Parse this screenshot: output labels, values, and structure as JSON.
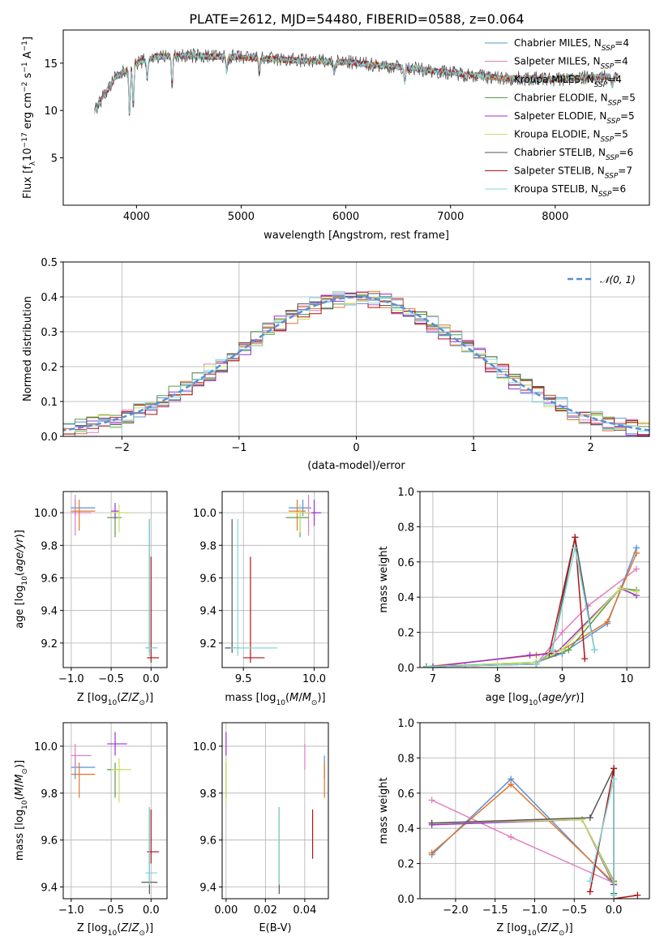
{
  "figure_title": "PLATE=2612, MJD=54480, FIBERID=0588, z=0.064",
  "series_colors": {
    "Chabrier MILES": "#5b8fd6",
    "Salpeter MILES": "#e07fc2",
    "Kroupa MILES": "#e0772a",
    "Chabrier ELODIE": "#5a9a4a",
    "Salpeter ELODIE": "#9b30d0",
    "Kroupa ELODIE": "#c8e060",
    "Chabrier STELIB": "#555555",
    "Salpeter STELIB": "#b01515",
    "Kroupa STELIB": "#80d8d8"
  },
  "chart_data": [
    {
      "type": "line",
      "panel": "spectrum",
      "xlabel": "wavelength [Angstrom, rest frame]",
      "ylabel": "Flux [f_λ10^-17 erg cm^-2 s^-1 A^-1]",
      "xlim": [
        3300,
        8900
      ],
      "ylim": [
        0,
        18.5
      ],
      "xticks": [
        4000,
        5000,
        6000,
        7000,
        8000
      ],
      "yticks": [
        5,
        10,
        15
      ],
      "grid": false,
      "legend_position": "right",
      "legend": [
        {
          "name": "Chabrier MILES",
          "nssp": "4"
        },
        {
          "name": "Salpeter MILES",
          "nssp": "4"
        },
        {
          "name": "Kroupa MILES",
          "nssp": "4"
        },
        {
          "name": "Chabrier ELODIE",
          "nssp": "5"
        },
        {
          "name": "Salpeter ELODIE",
          "nssp": "5"
        },
        {
          "name": "Kroupa ELODIE",
          "nssp": "5"
        },
        {
          "name": "Chabrier STELIB",
          "nssp": "6"
        },
        {
          "name": "Salpeter STELIB",
          "nssp": "7"
        },
        {
          "name": "Kroupa STELIB",
          "nssp": "6"
        }
      ],
      "continuum": {
        "x": [
          3600,
          3700,
          3800,
          3900,
          4000,
          4200,
          4500,
          5000,
          5500,
          6000,
          6500,
          7000,
          7500,
          8000,
          8500
        ],
        "y": [
          10.0,
          11.8,
          13.5,
          14.2,
          15.0,
          15.7,
          15.8,
          15.6,
          15.3,
          15.1,
          14.6,
          14.0,
          13.4,
          13.3,
          13.6
        ]
      }
    },
    {
      "type": "step",
      "panel": "residuals",
      "xlabel": "(data-model)/error",
      "ylabel": "Normed distribution",
      "xlim": [
        -2.5,
        2.5
      ],
      "ylim": [
        0,
        0.5
      ],
      "xticks": [
        -2,
        -1,
        0,
        1,
        2
      ],
      "yticks": [
        0.0,
        0.1,
        0.2,
        0.3,
        0.4,
        0.5
      ],
      "grid": true,
      "legend_position": "top-right",
      "reference_curve": {
        "name": "𝒩(0, 1)",
        "mean": 0,
        "sigma": 1
      },
      "bin_width": 0.1
    },
    {
      "type": "errorbar",
      "panel": "age-vs-Z",
      "xlabel": "Z [log10(Z/Z⊙)]",
      "ylabel": "age [log10(age/yr)]",
      "xlim": [
        -1.1,
        0.2
      ],
      "ylim": [
        9.05,
        10.13
      ],
      "xticks": [
        -1.0,
        -0.5,
        0.0
      ],
      "yticks": [
        9.2,
        9.4,
        9.6,
        9.8,
        10.0
      ],
      "points": [
        {
          "series": "Chabrier MILES",
          "x": -0.95,
          "xerr": [
            0.05,
            0.25
          ],
          "y": 10.03,
          "yerr": [
            0.05,
            0.05
          ]
        },
        {
          "series": "Salpeter MILES",
          "x": -0.95,
          "xerr": [
            0.05,
            0.2
          ],
          "y": 10.0,
          "yerr": [
            0.14,
            0.11
          ]
        },
        {
          "series": "Kroupa MILES",
          "x": -0.9,
          "xerr": [
            0.1,
            0.2
          ],
          "y": 10.01,
          "yerr": [
            0.12,
            0.07
          ]
        },
        {
          "series": "Chabrier ELODIE",
          "x": -0.45,
          "xerr": [
            0.1,
            0.08
          ],
          "y": 9.97,
          "yerr": [
            0.12,
            0.03
          ]
        },
        {
          "series": "Salpeter ELODIE",
          "x": -0.45,
          "xerr": [
            0.05,
            0.05
          ],
          "y": 10.01,
          "yerr": [
            0.05,
            0.05
          ]
        },
        {
          "series": "Kroupa ELODIE",
          "x": -0.4,
          "xerr": [
            0.1,
            0.15
          ],
          "y": 10.0,
          "yerr": [
            0.12,
            0.05
          ]
        },
        {
          "series": "Chabrier STELIB",
          "x": -0.02,
          "xerr": [
            0.05,
            0.1
          ],
          "y": 9.17,
          "yerr": [
            0.03,
            0.79
          ]
        },
        {
          "series": "Salpeter STELIB",
          "x": 0.0,
          "xerr": [
            0.05,
            0.1
          ],
          "y": 9.11,
          "yerr": [
            0.03,
            0.62
          ]
        },
        {
          "series": "Kroupa STELIB",
          "x": -0.02,
          "xerr": [
            0.05,
            0.1
          ],
          "y": 9.17,
          "yerr": [
            0.05,
            0.79
          ]
        }
      ]
    },
    {
      "type": "errorbar",
      "panel": "age-vs-mass",
      "xlabel": "mass [log10(M/M⊙)]",
      "ylabel": "",
      "xlim": [
        9.35,
        10.1
      ],
      "ylim": [
        9.05,
        10.13
      ],
      "xticks": [
        9.5,
        10.0
      ],
      "yticks": [
        9.2,
        9.4,
        9.6,
        9.8,
        10.0
      ],
      "points": [
        {
          "series": "Chabrier MILES",
          "x": 9.92,
          "xerr": [
            0.1,
            0.06
          ],
          "y": 10.03,
          "yerr": [
            0.05,
            0.05
          ]
        },
        {
          "series": "Salpeter MILES",
          "x": 9.96,
          "xerr": [
            0.05,
            0.06
          ],
          "y": 10.0,
          "yerr": [
            0.14,
            0.11
          ]
        },
        {
          "series": "Kroupa MILES",
          "x": 9.88,
          "xerr": [
            0.06,
            0.06
          ],
          "y": 10.01,
          "yerr": [
            0.12,
            0.07
          ]
        },
        {
          "series": "Chabrier ELODIE",
          "x": 9.9,
          "xerr": [
            0.1,
            0.06
          ],
          "y": 9.97,
          "yerr": [
            0.12,
            0.03
          ]
        },
        {
          "series": "Salpeter ELODIE",
          "x": 10.0,
          "xerr": [
            0.1,
            0.05
          ],
          "y": 10.0,
          "yerr": [
            0.08,
            0.08
          ]
        },
        {
          "series": "Kroupa ELODIE",
          "x": 9.9,
          "xerr": [
            0.08,
            0.08
          ],
          "y": 10.0,
          "yerr": [
            0.12,
            0.05
          ]
        },
        {
          "series": "Chabrier STELIB",
          "x": 9.42,
          "xerr": [
            0.05,
            0.05
          ],
          "y": 9.17,
          "yerr": [
            0.03,
            0.79
          ]
        },
        {
          "series": "Salpeter STELIB",
          "x": 9.55,
          "xerr": [
            0.05,
            0.1
          ],
          "y": 9.11,
          "yerr": [
            0.03,
            0.62
          ]
        },
        {
          "series": "Kroupa STELIB",
          "x": 9.46,
          "xerr": [
            0.05,
            0.28
          ],
          "y": 9.17,
          "yerr": [
            0.05,
            0.79
          ]
        }
      ]
    },
    {
      "type": "line",
      "panel": "weight-vs-age",
      "xlabel": "age [log10(age/yr)]",
      "ylabel": "mass weight",
      "xlim": [
        6.8,
        10.35
      ],
      "ylim": [
        0,
        1.0
      ],
      "xticks": [
        7,
        8,
        9,
        10
      ],
      "yticks": [
        0.0,
        0.2,
        0.4,
        0.6,
        0.8,
        1.0
      ],
      "grid": true,
      "series": [
        {
          "name": "Chabrier MILES",
          "x": [
            6.9,
            7.5,
            8.6,
            9.0,
            9.7,
            10.15
          ],
          "y": [
            0.005,
            0.01,
            0.03,
            0.08,
            0.25,
            0.68
          ]
        },
        {
          "name": "Salpeter MILES",
          "x": [
            7.0,
            8.6,
            9.0,
            9.4,
            10.15
          ],
          "y": [
            0.005,
            0.02,
            0.2,
            0.35,
            0.56
          ]
        },
        {
          "name": "Kroupa MILES",
          "x": [
            6.9,
            8.6,
            9.0,
            9.7,
            10.15
          ],
          "y": [
            0.005,
            0.07,
            0.1,
            0.26,
            0.65
          ]
        },
        {
          "name": "Chabrier ELODIE",
          "x": [
            6.9,
            8.6,
            9.1,
            9.9,
            10.15
          ],
          "y": [
            0.005,
            0.03,
            0.1,
            0.45,
            0.44
          ]
        },
        {
          "name": "Salpeter ELODIE",
          "x": [
            7.0,
            8.5,
            8.9,
            9.9,
            10.15
          ],
          "y": [
            0.005,
            0.07,
            0.08,
            0.45,
            0.41
          ]
        },
        {
          "name": "Kroupa ELODIE",
          "x": [
            6.9,
            8.6,
            9.0,
            9.9,
            10.15
          ],
          "y": [
            0.005,
            0.03,
            0.1,
            0.45,
            0.43
          ]
        },
        {
          "name": "Chabrier STELIB",
          "x": [
            6.9,
            8.6,
            8.85,
            9.2,
            9.5
          ],
          "y": [
            0.005,
            0.02,
            0.1,
            0.74,
            0.1
          ]
        },
        {
          "name": "Salpeter STELIB",
          "x": [
            6.9,
            8.6,
            8.8,
            9.2,
            9.35
          ],
          "y": [
            0.005,
            0.02,
            0.08,
            0.74,
            0.05
          ]
        },
        {
          "name": "Kroupa STELIB",
          "x": [
            6.9,
            8.6,
            8.85,
            9.2,
            9.5
          ],
          "y": [
            0.005,
            0.02,
            0.1,
            0.68,
            0.1
          ]
        }
      ]
    },
    {
      "type": "errorbar",
      "panel": "mass-vs-Z",
      "xlabel": "Z [log10(Z/Z⊙)]",
      "ylabel": "mass [log10(M/M⊙)]",
      "xlim": [
        -1.1,
        0.2
      ],
      "ylim": [
        9.35,
        10.1
      ],
      "xticks": [
        -1.0,
        -0.5,
        0.0
      ],
      "yticks": [
        9.4,
        9.6,
        9.8,
        10.0
      ],
      "points": [
        {
          "series": "Chabrier MILES",
          "x": -0.95,
          "xerr": [
            0.05,
            0.25
          ],
          "y": 9.91,
          "yerr": [
            0.05,
            0.05
          ]
        },
        {
          "series": "Salpeter MILES",
          "x": -0.95,
          "xerr": [
            0.05,
            0.2
          ],
          "y": 9.96,
          "yerr": [
            0.06,
            0.05
          ]
        },
        {
          "series": "Kroupa MILES",
          "x": -0.9,
          "xerr": [
            0.1,
            0.2
          ],
          "y": 9.88,
          "yerr": [
            0.1,
            0.05
          ]
        },
        {
          "series": "Chabrier ELODIE",
          "x": -0.45,
          "xerr": [
            0.1,
            0.08
          ],
          "y": 9.9,
          "yerr": [
            0.12,
            0.03
          ]
        },
        {
          "series": "Salpeter ELODIE",
          "x": -0.45,
          "xerr": [
            0.1,
            0.15
          ],
          "y": 10.01,
          "yerr": [
            0.05,
            0.05
          ]
        },
        {
          "series": "Kroupa ELODIE",
          "x": -0.4,
          "xerr": [
            0.1,
            0.15
          ],
          "y": 9.9,
          "yerr": [
            0.14,
            0.05
          ]
        },
        {
          "series": "Chabrier STELIB",
          "x": -0.02,
          "xerr": [
            0.1,
            0.1
          ],
          "y": 9.42,
          "yerr": [
            0.05,
            0.32
          ]
        },
        {
          "series": "Salpeter STELIB",
          "x": 0.0,
          "xerr": [
            0.05,
            0.1
          ],
          "y": 9.55,
          "yerr": [
            0.05,
            0.18
          ]
        },
        {
          "series": "Kroupa STELIB",
          "x": -0.02,
          "xerr": [
            0.05,
            0.1
          ],
          "y": 9.46,
          "yerr": [
            0.05,
            0.28
          ]
        }
      ]
    },
    {
      "type": "errorbar",
      "panel": "mass-vs-EBV",
      "xlabel": "E(B-V)",
      "ylabel": "",
      "xlim": [
        -0.002,
        0.052
      ],
      "ylim": [
        9.35,
        10.1
      ],
      "xticks": [
        0.0,
        0.02,
        0.04
      ],
      "yticks": [
        9.4,
        9.6,
        9.8,
        10.0
      ],
      "points": [
        {
          "series": "Chabrier MILES",
          "x": 0.05,
          "y": 9.91,
          "yerr": [
            0.05,
            0.05
          ]
        },
        {
          "series": "Salpeter MILES",
          "x": 0.04,
          "y": 9.96,
          "yerr": [
            0.06,
            0.05
          ]
        },
        {
          "series": "Kroupa MILES",
          "x": 0.05,
          "y": 9.88,
          "yerr": [
            0.1,
            0.05
          ]
        },
        {
          "series": "Chabrier ELODIE",
          "x": 0.0,
          "y": 9.9,
          "yerr": [
            0.12,
            0.03
          ]
        },
        {
          "series": "Salpeter ELODIE",
          "x": 0.0,
          "y": 10.01,
          "yerr": [
            0.05,
            0.05
          ]
        },
        {
          "series": "Kroupa ELODIE",
          "x": 0.0,
          "y": 9.9,
          "yerr": [
            0.14,
            0.05
          ]
        },
        {
          "series": "Chabrier STELIB",
          "x": 0.027,
          "y": 9.42,
          "yerr": [
            0.05,
            0.32
          ]
        },
        {
          "series": "Salpeter STELIB",
          "x": 0.044,
          "y": 9.55,
          "yerr": [
            0.03,
            0.18
          ]
        },
        {
          "series": "Kroupa STELIB",
          "x": 0.027,
          "y": 9.46,
          "yerr": [
            0.05,
            0.28
          ]
        }
      ]
    },
    {
      "type": "line",
      "panel": "weight-vs-Z",
      "xlabel": "Z [log10(Z/Z⊙)]",
      "ylabel": "mass weight",
      "xlim": [
        -2.45,
        0.45
      ],
      "ylim": [
        0,
        1.0
      ],
      "xticks": [
        -2.0,
        -1.5,
        -1.0,
        -0.5,
        0.0
      ],
      "yticks": [
        0.0,
        0.2,
        0.4,
        0.6,
        0.8,
        1.0
      ],
      "grid": true,
      "series": [
        {
          "name": "Chabrier MILES",
          "x": [
            -2.3,
            -1.3,
            0.0
          ],
          "y": [
            0.25,
            0.68,
            0.08
          ]
        },
        {
          "name": "Salpeter MILES",
          "x": [
            -2.3,
            -1.3,
            0.0
          ],
          "y": [
            0.56,
            0.35,
            0.09
          ]
        },
        {
          "name": "Kroupa MILES",
          "x": [
            -2.3,
            -1.3,
            0.0
          ],
          "y": [
            0.26,
            0.65,
            0.09
          ]
        },
        {
          "name": "Chabrier ELODIE",
          "x": [
            -2.3,
            -0.4,
            0.0
          ],
          "y": [
            0.43,
            0.45,
            0.1
          ]
        },
        {
          "name": "Salpeter ELODIE",
          "x": [
            -2.3,
            -0.4,
            0.0
          ],
          "y": [
            0.42,
            0.45,
            0.08
          ]
        },
        {
          "name": "Kroupa ELODIE",
          "x": [
            -2.3,
            -0.4,
            0.0
          ],
          "y": [
            0.43,
            0.45,
            0.09
          ]
        },
        {
          "name": "Chabrier STELIB",
          "x": [
            -2.3,
            -0.3,
            0.0,
            0.0
          ],
          "y": [
            0.43,
            0.46,
            0.74,
            0.03
          ]
        },
        {
          "name": "Salpeter STELIB",
          "x": [
            -0.3,
            0.0,
            0.0,
            0.3
          ],
          "y": [
            0.04,
            0.74,
            0.0,
            0.02
          ]
        },
        {
          "name": "Kroupa STELIB",
          "x": [
            -0.3,
            0.0,
            0.0
          ],
          "y": [
            0.1,
            0.68,
            0.02
          ]
        }
      ]
    }
  ]
}
